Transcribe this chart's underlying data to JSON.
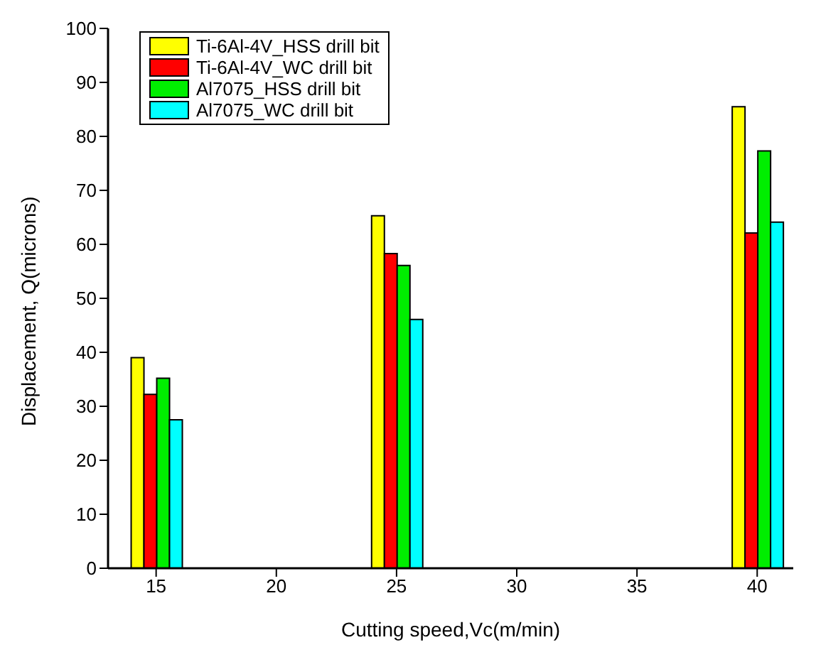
{
  "chart_data": {
    "type": "bar",
    "xlabel": "Cutting speed,Vc(m/min)",
    "ylabel": "Displacement, Q(microns)",
    "x": [
      15,
      25,
      40
    ],
    "series": [
      {
        "name": "Ti-6Al-4V_HSS drill bit",
        "color": "#ffff00",
        "values": [
          39.0,
          65.3,
          85.5
        ]
      },
      {
        "name": "Ti-6Al-4V_WC drill bit",
        "color": "#ff0000",
        "values": [
          32.2,
          58.3,
          62.1
        ]
      },
      {
        "name": "Al7075_HSS drill bit",
        "color": "#00ee00",
        "values": [
          35.2,
          56.1,
          77.3
        ]
      },
      {
        "name": "Al7075_WC drill bit",
        "color": "#00ffff",
        "values": [
          27.5,
          46.1,
          64.1
        ]
      }
    ],
    "xlim": [
      13,
      41.5
    ],
    "xticks": [
      15,
      20,
      25,
      30,
      35,
      40
    ],
    "ylim": [
      0,
      100
    ],
    "yticks": [
      0,
      10,
      20,
      30,
      40,
      50,
      60,
      70,
      80,
      90,
      100
    ],
    "legend": "top left",
    "grid": false
  }
}
